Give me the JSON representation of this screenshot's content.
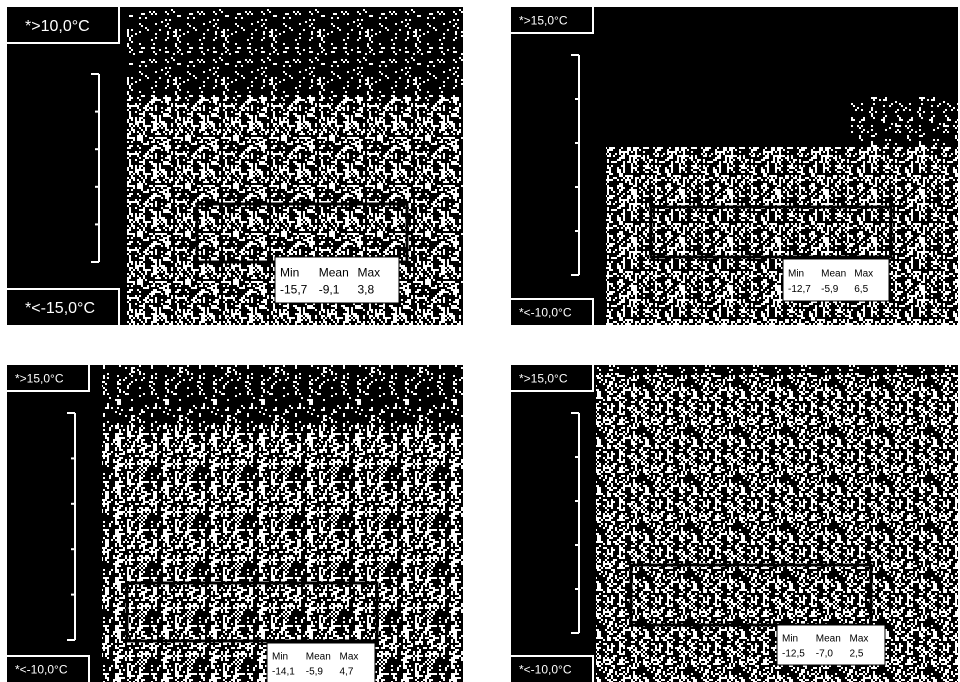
{
  "panels": [
    {
      "max_label": "*>10,0°C",
      "min_label": "*<-15,0°C",
      "stats": {
        "headers": [
          "Min",
          "Mean",
          "Max"
        ],
        "values": [
          "-15,7",
          "-9,1",
          "3,8"
        ]
      }
    },
    {
      "max_label": "*>15,0°C",
      "min_label": "*<-10,0°C",
      "stats": {
        "headers": [
          "Min",
          "Mean",
          "Max"
        ],
        "values": [
          "-12,7",
          "-5,9",
          "6,5"
        ]
      }
    },
    {
      "max_label": "*>15,0°C",
      "min_label": "*<-10,0°C",
      "stats": {
        "headers": [
          "Min",
          "Mean",
          "Max"
        ],
        "values": [
          "-14,1",
          "-5,9",
          "4,7"
        ]
      }
    },
    {
      "max_label": "*>15,0°C",
      "min_label": "*<-10,0°C",
      "stats": {
        "headers": [
          "Min",
          "Mean",
          "Max"
        ],
        "values": [
          "-12,5",
          "-7,0",
          "2,5"
        ]
      }
    }
  ]
}
